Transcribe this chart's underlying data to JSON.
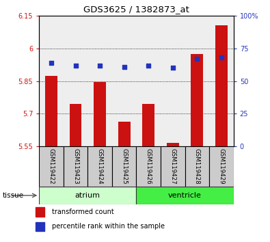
{
  "title": "GDS3625 / 1382873_at",
  "samples": [
    "GSM119422",
    "GSM119423",
    "GSM119424",
    "GSM119425",
    "GSM119426",
    "GSM119427",
    "GSM119428",
    "GSM119429"
  ],
  "red_values": [
    5.875,
    5.745,
    5.845,
    5.665,
    5.745,
    5.565,
    5.975,
    6.105
  ],
  "blue_values": [
    64,
    62,
    62,
    61,
    62,
    60,
    67,
    68
  ],
  "ylim_left": [
    5.55,
    6.15
  ],
  "ylim_right": [
    0,
    100
  ],
  "yticks_left": [
    5.55,
    5.7,
    5.85,
    6.0,
    6.15
  ],
  "yticks_right": [
    0,
    25,
    50,
    75,
    100
  ],
  "ytick_labels_left": [
    "5.55",
    "5.7",
    "5.85",
    "6",
    "6.15"
  ],
  "ytick_labels_right": [
    "0",
    "25",
    "50",
    "75",
    "100%"
  ],
  "bar_color": "#cc1111",
  "dot_color": "#2233bb",
  "bar_bottom": 5.55,
  "atrium_color": "#ccffcc",
  "ventricle_color": "#44ee44",
  "tissue_label": "tissue",
  "legend_red": "transformed count",
  "legend_blue": "percentile rank within the sample",
  "plot_bg_color": "#eeeeee",
  "bar_width": 0.5,
  "grid_yticks": [
    5.7,
    5.85,
    6.0
  ]
}
